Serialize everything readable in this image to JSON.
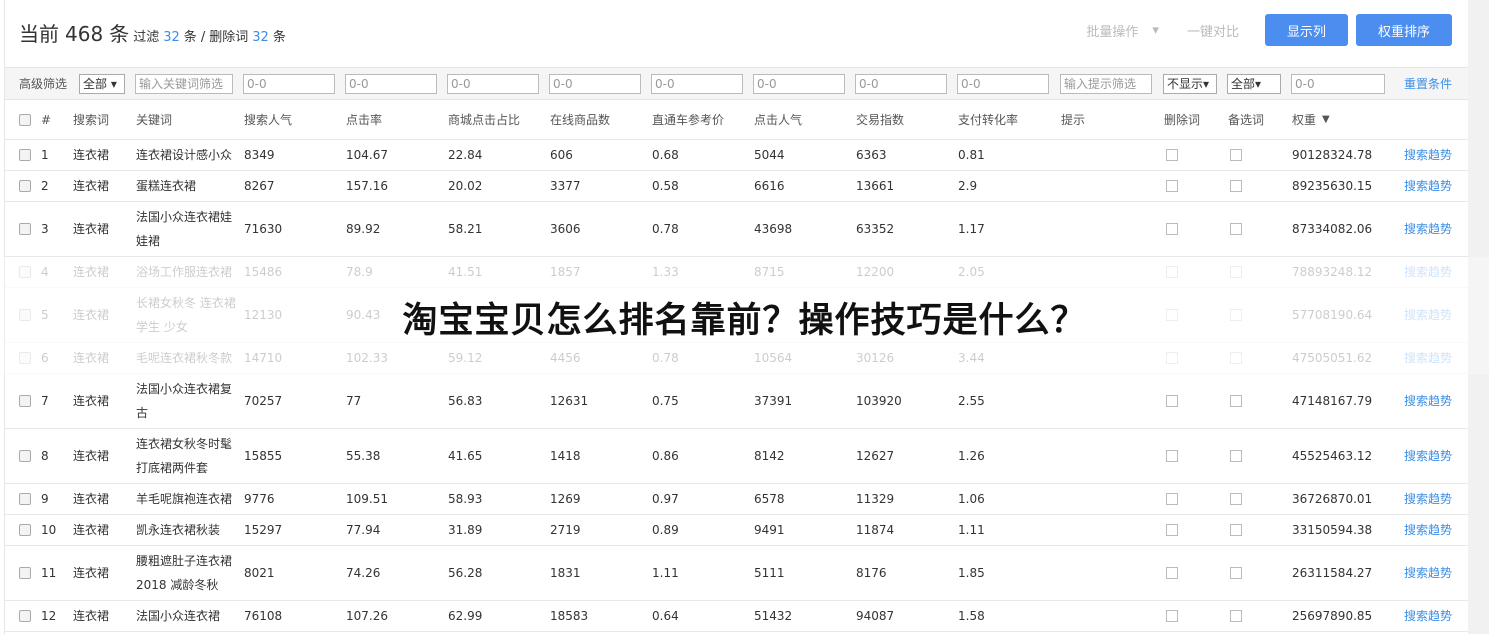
{
  "header": {
    "current_prefix": "当前",
    "current_count": "468",
    "current_unit": "条",
    "filter_label": "过滤",
    "filter_count": "32",
    "filter_unit": "条 /",
    "deleted_label": "删除词",
    "deleted_count": "32",
    "deleted_unit": "条"
  },
  "toolbar": {
    "batch_label": "批量操作",
    "batch_arrow": "▾",
    "compare_label": "一键对比",
    "show_columns": "显示列",
    "weight_sort": "权重排序"
  },
  "filter": {
    "label": "高级筛选",
    "search_word_select": "全部 ▾",
    "keyword_placeholder": "输入关键词筛选",
    "ranges": [
      "0-0",
      "0-0",
      "0-0",
      "0-0",
      "0-0",
      "0-0",
      "0-0",
      "0-0"
    ],
    "hint_placeholder": "输入提示筛选",
    "delete_select": "不显示▾",
    "alt_select": "全部▾",
    "weight_range": "0-0",
    "reset": "重置条件"
  },
  "columns": [
    "#",
    "搜索词",
    "关键词",
    "搜索人气",
    "点击率",
    "商城点击占比",
    "在线商品数",
    "直通车参考价",
    "点击人气",
    "交易指数",
    "支付转化率",
    "提示",
    "删除词",
    "备选词",
    "权重"
  ],
  "sort_icon": "caret-down",
  "trend_label": "搜索趋势",
  "rows": [
    [
      "1",
      "连衣裙",
      "连衣裙设计感小众",
      "8349",
      "104.67",
      "22.84",
      "606",
      "0.68",
      "5044",
      "6363",
      "0.81",
      "",
      "90128324.78"
    ],
    [
      "2",
      "连衣裙",
      "蛋糕连衣裙",
      "8267",
      "157.16",
      "20.02",
      "3377",
      "0.58",
      "6616",
      "13661",
      "2.9",
      "",
      "89235630.15"
    ],
    [
      "3",
      "连衣裙",
      "法国小众连衣裙娃娃裙",
      "71630",
      "89.92",
      "58.21",
      "3606",
      "0.78",
      "43698",
      "63352",
      "1.17",
      "",
      "87334082.06"
    ],
    [
      "4",
      "连衣裙",
      "浴场工作服连衣裙",
      "15486",
      "78.9",
      "41.51",
      "1857",
      "1.33",
      "8715",
      "12200",
      "2.05",
      "",
      "78893248.12"
    ],
    [
      "5",
      "连衣裙",
      "长裙女秋冬 连衣裙 学生 少女",
      "12130",
      "90.43",
      "",
      "",
      "",
      "",
      "",
      "",
      "",
      "57708190.64"
    ],
    [
      "6",
      "连衣裙",
      "毛呢连衣裙秋冬款",
      "14710",
      "102.33",
      "59.12",
      "4456",
      "0.78",
      "10564",
      "30126",
      "3.44",
      "",
      "47505051.62"
    ],
    [
      "7",
      "连衣裙",
      "法国小众连衣裙复古",
      "70257",
      "77",
      "56.83",
      "12631",
      "0.75",
      "37391",
      "103920",
      "2.55",
      "",
      "47148167.79"
    ],
    [
      "8",
      "连衣裙",
      "连衣裙女秋冬时髦打底裙两件套",
      "15855",
      "55.38",
      "41.65",
      "1418",
      "0.86",
      "8142",
      "12627",
      "1.26",
      "",
      "45525463.12"
    ],
    [
      "9",
      "连衣裙",
      "羊毛呢旗袍连衣裙",
      "9776",
      "109.51",
      "58.93",
      "1269",
      "0.97",
      "6578",
      "11329",
      "1.06",
      "",
      "36726870.01"
    ],
    [
      "10",
      "连衣裙",
      "凯永连衣裙秋装",
      "15297",
      "77.94",
      "31.89",
      "2719",
      "0.89",
      "9491",
      "11874",
      "1.11",
      "",
      "33150594.38"
    ],
    [
      "11",
      "连衣裙",
      "腰粗遮肚子连衣裙2018 减龄冬秋",
      "8021",
      "74.26",
      "56.28",
      "1831",
      "1.11",
      "5111",
      "8176",
      "1.85",
      "",
      "26311584.27"
    ],
    [
      "12",
      "连衣裙",
      "法国小众连衣裙",
      "76108",
      "107.26",
      "62.99",
      "18583",
      "0.64",
      "51432",
      "94087",
      "1.58",
      "",
      "25697890.85"
    ]
  ],
  "overlay_title": "淘宝宝贝怎么排名靠前？操作技巧是什么？",
  "colors": {
    "accent": "#4b8ef0",
    "link": "#3a8ee6"
  }
}
